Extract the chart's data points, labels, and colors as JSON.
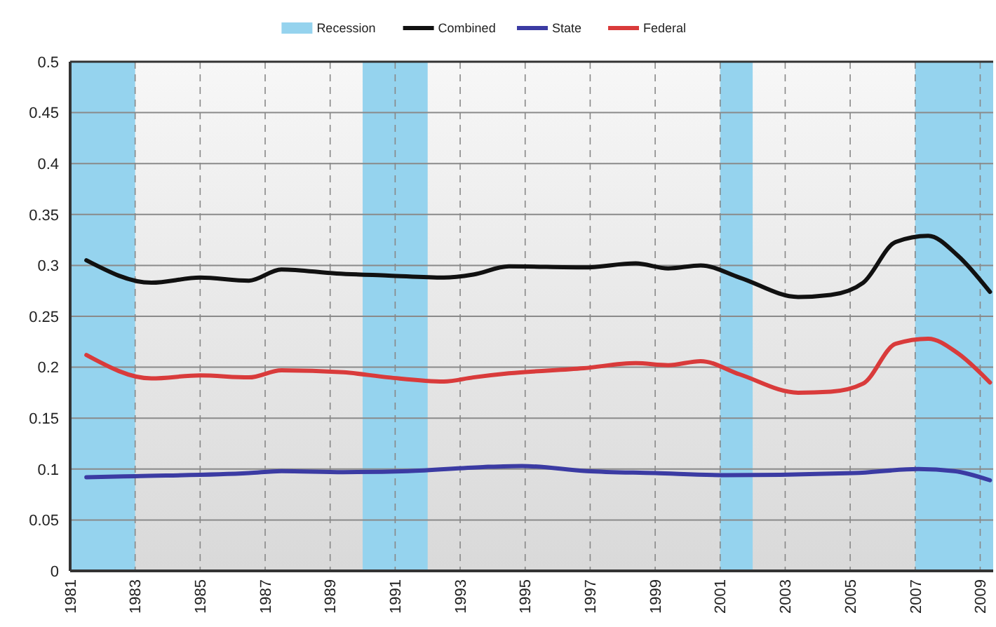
{
  "chart_data": {
    "type": "line",
    "xlim": [
      1981,
      2009.4
    ],
    "xticks": [
      1981,
      1983,
      1985,
      1987,
      1989,
      1991,
      1993,
      1995,
      1997,
      1999,
      2001,
      2003,
      2005,
      2007,
      2009
    ],
    "ylim": [
      0,
      0.5
    ],
    "yticks": [
      0,
      0.05,
      0.1,
      0.15,
      0.2,
      0.25,
      0.3,
      0.35,
      0.4,
      0.45,
      0.5
    ],
    "grid": true,
    "legend": "top",
    "line_style": "solid",
    "marker": "none",
    "bands": [
      {
        "axis": "x",
        "from": 1981,
        "to": 1983,
        "label": "Recession",
        "color": "#95d3ee"
      },
      {
        "axis": "x",
        "from": 1990,
        "to": 1992,
        "color": "#95d3ee"
      },
      {
        "axis": "x",
        "from": 2001,
        "to": 2002,
        "color": "#95d3ee"
      },
      {
        "axis": "x",
        "from": 2007,
        "to": 2009.4,
        "color": "#95d3ee"
      }
    ],
    "series": [
      {
        "name": "Combined",
        "color": "#111111",
        "x": [
          1981.5,
          1983.5,
          1985,
          1986.5,
          1987.5,
          1989.2,
          1990.8,
          1992.5,
          1993.4,
          1994.5,
          1996.8,
          1998.4,
          1999.4,
          2000.4,
          2001.6,
          2003.4,
          2004.4,
          2005.4,
          2006.4,
          2007.4,
          2008.3,
          2009.3
        ],
        "values": [
          0.305,
          0.283,
          0.288,
          0.285,
          0.296,
          0.292,
          0.29,
          0.288,
          0.291,
          0.299,
          0.298,
          0.302,
          0.297,
          0.3,
          0.288,
          0.269,
          0.271,
          0.283,
          0.323,
          0.329,
          0.31,
          0.274
        ]
      },
      {
        "name": "State",
        "color": "#3b3ba3",
        "x": [
          1981.5,
          1983,
          1986.5,
          1987.5,
          1989.4,
          1991.4,
          1993.7,
          1994.9,
          1996.9,
          1999,
          2001.2,
          2005.1,
          2007.1,
          2008.2,
          2009.3
        ],
        "values": [
          0.092,
          0.093,
          0.096,
          0.098,
          0.097,
          0.098,
          0.102,
          0.103,
          0.098,
          0.096,
          0.094,
          0.096,
          0.1,
          0.098,
          0.089
        ]
      },
      {
        "name": "Federal",
        "color": "#d93b3b",
        "x": [
          1981.5,
          1983.5,
          1985,
          1986.5,
          1987.5,
          1989.4,
          1990.8,
          1992.5,
          1993.4,
          1994.5,
          1996.8,
          1998.4,
          1999.4,
          2000.4,
          2001.6,
          2003.4,
          2004.4,
          2005.4,
          2006.4,
          2007.4,
          2008.3,
          2009.3
        ],
        "values": [
          0.212,
          0.189,
          0.192,
          0.19,
          0.197,
          0.195,
          0.19,
          0.186,
          0.19,
          0.194,
          0.199,
          0.204,
          0.202,
          0.206,
          0.193,
          0.175,
          0.176,
          0.184,
          0.223,
          0.228,
          0.214,
          0.185
        ]
      }
    ]
  }
}
